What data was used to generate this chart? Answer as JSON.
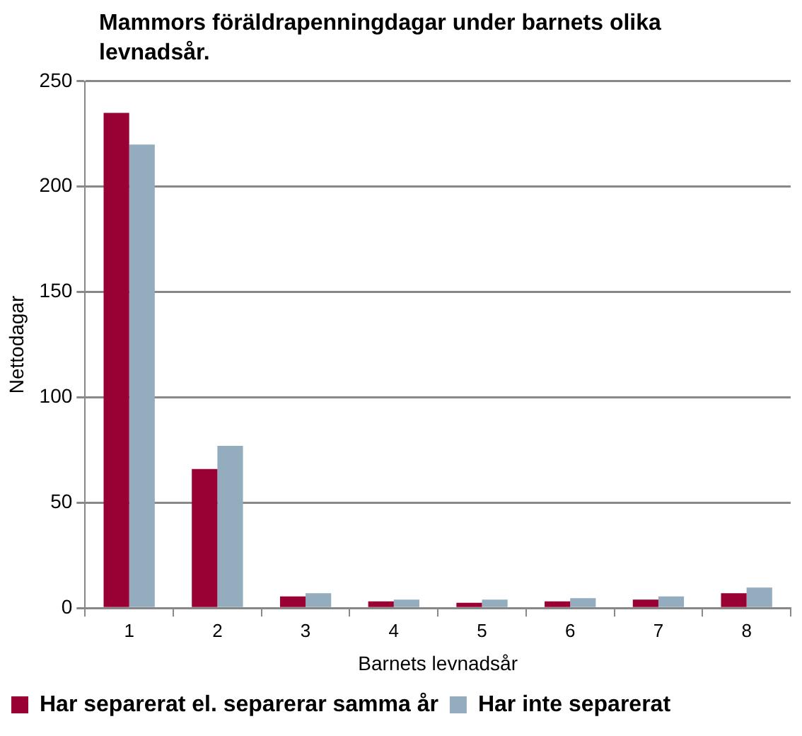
{
  "chart_data": {
    "type": "bar",
    "title": "Mammors föräldrapenningdagar under barnets olika  levnadsår.",
    "xlabel": "Barnets levnadsår",
    "ylabel": "Nettodagar",
    "categories": [
      "1",
      "2",
      "3",
      "4",
      "5",
      "6",
      "7",
      "8"
    ],
    "series": [
      {
        "name": "Har separerat el. separerar samma år",
        "color": "#990033",
        "values": [
          235,
          66,
          5.5,
          3.2,
          2.5,
          3.2,
          4,
          7
        ]
      },
      {
        "name": "Har inte separerat",
        "color": "#93acbe",
        "values": [
          220,
          77,
          7,
          4,
          4,
          4.7,
          5.5,
          9.7
        ]
      }
    ],
    "ylim": [
      0,
      250
    ],
    "yticks": [
      0,
      50,
      100,
      150,
      200,
      250
    ],
    "grid": "y",
    "legend": "bottom"
  }
}
